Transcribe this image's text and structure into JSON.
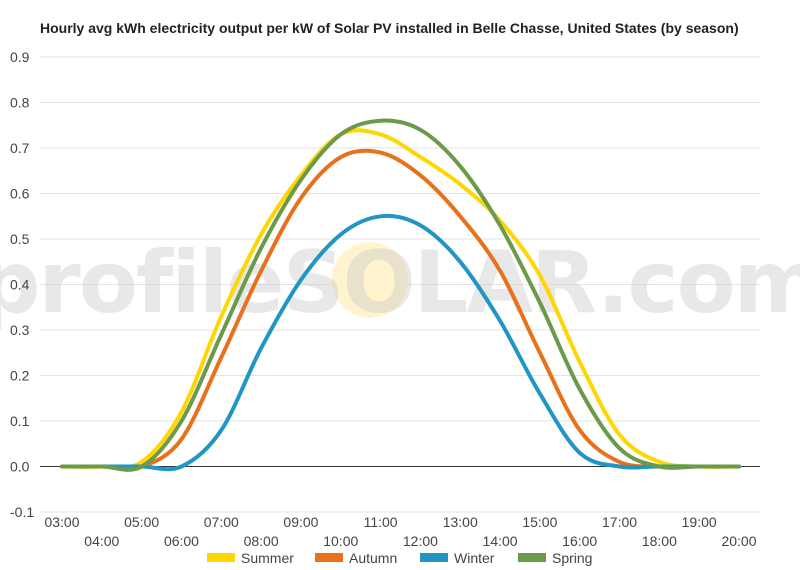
{
  "chart_data": {
    "type": "line",
    "title": "Hourly avg kWh electricity output per kW of Solar PV installed in Belle Chasse, United States (by season)",
    "watermark": "profileSOLAR.com",
    "xlabel": "",
    "ylabel": "",
    "ylim": [
      -0.1,
      0.9
    ],
    "yticks": [
      "-0.1",
      "0.0",
      "0.1",
      "0.2",
      "0.3",
      "0.4",
      "0.5",
      "0.6",
      "0.7",
      "0.8",
      "0.9"
    ],
    "categories": [
      "03:00",
      "04:00",
      "05:00",
      "06:00",
      "07:00",
      "08:00",
      "09:00",
      "10:00",
      "11:00",
      "12:00",
      "13:00",
      "14:00",
      "15:00",
      "16:00",
      "17:00",
      "18:00",
      "19:00",
      "20:00"
    ],
    "grid": true,
    "legend_position": "bottom",
    "series": [
      {
        "name": "Summer",
        "color": "#FFD600",
        "values": [
          0.0,
          0.0,
          0.01,
          0.12,
          0.33,
          0.51,
          0.64,
          0.73,
          0.73,
          0.68,
          0.62,
          0.54,
          0.42,
          0.23,
          0.07,
          0.01,
          0.0,
          0.0
        ]
      },
      {
        "name": "Autumn",
        "color": "#E8711C",
        "values": [
          0.0,
          0.0,
          0.0,
          0.06,
          0.24,
          0.43,
          0.59,
          0.68,
          0.69,
          0.64,
          0.55,
          0.43,
          0.25,
          0.08,
          0.01,
          0.0,
          0.0,
          0.0
        ]
      },
      {
        "name": "Winter",
        "color": "#2196C4",
        "values": [
          0.0,
          0.0,
          0.0,
          0.0,
          0.08,
          0.26,
          0.41,
          0.51,
          0.55,
          0.53,
          0.45,
          0.32,
          0.16,
          0.03,
          0.0,
          0.0,
          0.0,
          0.0
        ]
      },
      {
        "name": "Spring",
        "color": "#6A9A4A",
        "values": [
          0.0,
          0.0,
          0.0,
          0.1,
          0.29,
          0.48,
          0.63,
          0.73,
          0.76,
          0.74,
          0.66,
          0.53,
          0.36,
          0.17,
          0.04,
          0.0,
          0.0,
          0.0
        ]
      }
    ]
  }
}
